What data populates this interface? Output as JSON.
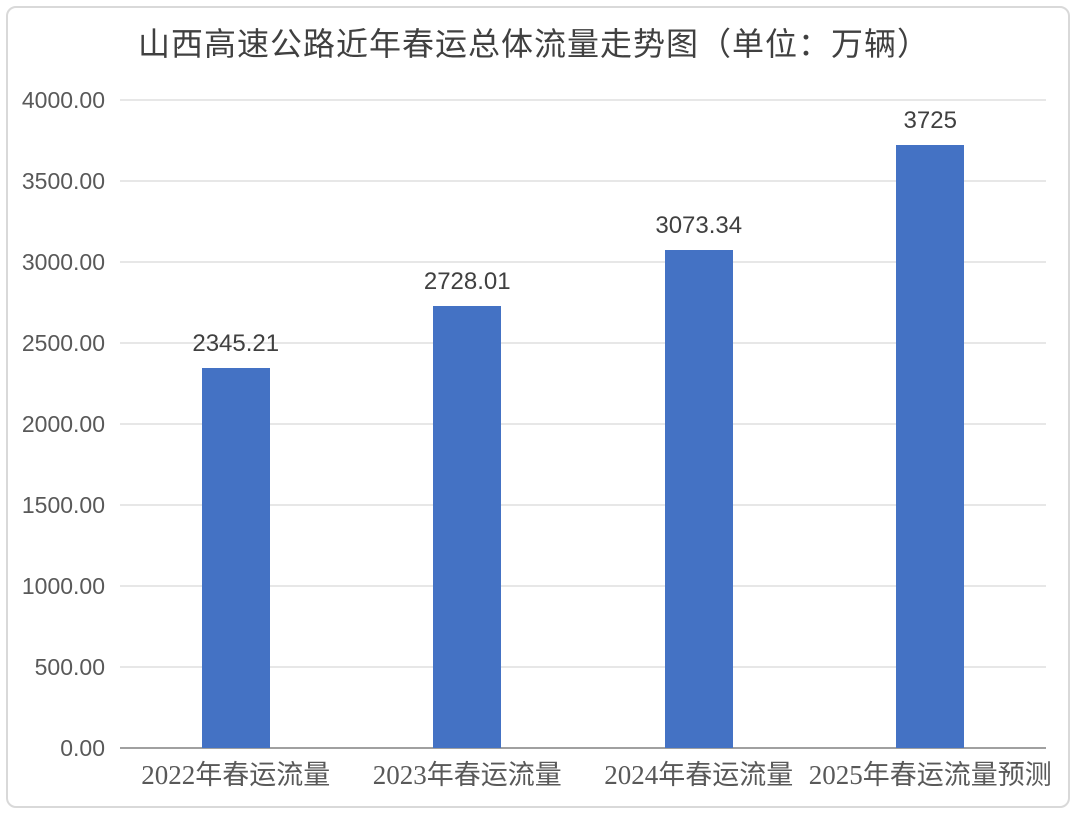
{
  "chart_data": {
    "type": "bar",
    "title": "山西高速公路近年春运总体流量走势图（单位：万辆）",
    "categories": [
      "2022年春运流量",
      "2023年春运流量",
      "2024年春运流量",
      "2025年春运流量预测"
    ],
    "values": [
      2345.21,
      2728.01,
      3073.34,
      3725
    ],
    "value_labels": [
      "2345.21",
      "2728.01",
      "3073.34",
      "3725"
    ],
    "xlabel": "",
    "ylabel": "",
    "ylim": [
      0,
      4000
    ],
    "y_tick_step": 500,
    "y_tick_labels": [
      "0.00",
      "500.00",
      "1000.00",
      "1500.00",
      "2000.00",
      "2500.00",
      "3000.00",
      "3500.00",
      "4000.00"
    ],
    "grid": true,
    "legend": "none",
    "colors": {
      "bar": "#4472C4",
      "gridline": "#E7E7E7",
      "axis_line": "#A0A0A0",
      "tick_text": "#595959",
      "value_label_text": "#404040",
      "title_text": "#404040",
      "frame_border": "#D9D9D9",
      "background": "#FFFFFF"
    }
  }
}
